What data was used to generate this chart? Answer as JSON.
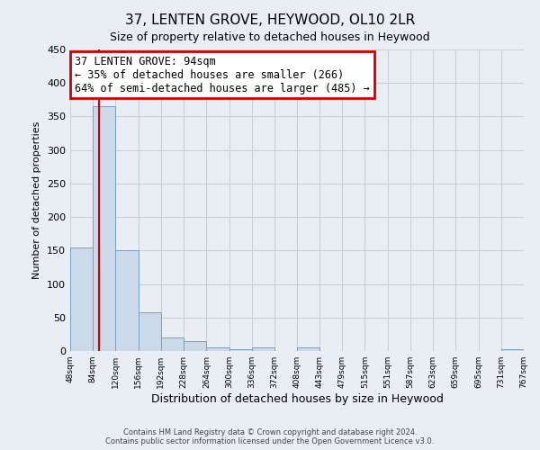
{
  "title": "37, LENTEN GROVE, HEYWOOD, OL10 2LR",
  "subtitle": "Size of property relative to detached houses in Heywood",
  "xlabel": "Distribution of detached houses by size in Heywood",
  "ylabel": "Number of detached properties",
  "bar_color": "#ccd9e8",
  "bar_edge_color": "#7aa0be",
  "grid_color": "#c8d0d8",
  "background_color": "#e8eef4",
  "property_line_x": 94,
  "annotation_title": "37 LENTEN GROVE: 94sqm",
  "annotation_line1": "← 35% of detached houses are smaller (266)",
  "annotation_line2": "64% of semi-detached houses are larger (485) →",
  "annotation_box_color": "#ffffff",
  "annotation_box_edge_color": "#cc0000",
  "property_line_color": "#cc0000",
  "bin_edges": [
    48,
    84,
    120,
    156,
    192,
    228,
    264,
    300,
    336,
    372,
    408,
    443,
    479,
    515,
    551,
    587,
    623,
    659,
    695,
    731,
    767
  ],
  "bar_heights": [
    155,
    365,
    150,
    58,
    20,
    15,
    5,
    3,
    5,
    0,
    5,
    0,
    0,
    0,
    0,
    0,
    0,
    0,
    0,
    3
  ],
  "tick_labels": [
    "48sqm",
    "84sqm",
    "120sqm",
    "156sqm",
    "192sqm",
    "228sqm",
    "264sqm",
    "300sqm",
    "336sqm",
    "372sqm",
    "408sqm",
    "443sqm",
    "479sqm",
    "515sqm",
    "551sqm",
    "587sqm",
    "623sqm",
    "659sqm",
    "695sqm",
    "731sqm",
    "767sqm"
  ],
  "ylim": [
    0,
    450
  ],
  "yticks": [
    0,
    50,
    100,
    150,
    200,
    250,
    300,
    350,
    400,
    450
  ],
  "footer_line1": "Contains HM Land Registry data © Crown copyright and database right 2024.",
  "footer_line2": "Contains public sector information licensed under the Open Government Licence v3.0."
}
